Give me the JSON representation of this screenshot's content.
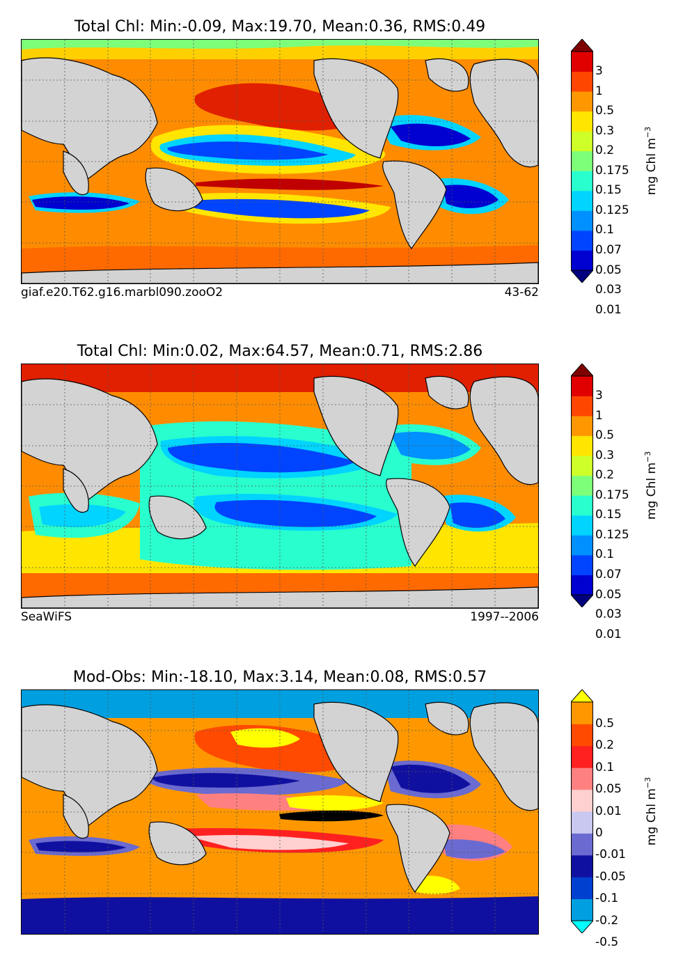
{
  "panels": [
    {
      "title": "Total Chl: Min:-0.09, Max:19.70, Mean:0.36, RMS:0.49",
      "left_caption": "giaf.e20.T62.g16.marbl090.zooO2",
      "right_caption": "43-62",
      "colorbar": {
        "ticks": [
          "3",
          "1",
          "0.5",
          "0.3",
          "0.2",
          "0.175",
          "0.15",
          "0.125",
          "0.1",
          "0.07",
          "0.05",
          "0.03",
          "0.01"
        ],
        "colors": [
          "#00007f",
          "#0000d0",
          "#0044ff",
          "#0090ff",
          "#00d4ff",
          "#29ffce",
          "#7dff7a",
          "#ceff29",
          "#ffe500",
          "#ff9800",
          "#ff4600",
          "#e00000",
          "#7f0000"
        ],
        "unit": "mg Chl m",
        "unit_exp": "−3"
      }
    },
    {
      "title": "Total Chl: Min:0.02, Max:64.57, Mean:0.71, RMS:2.86",
      "left_caption": "SeaWiFS",
      "right_caption": "1997--2006",
      "colorbar": {
        "ticks": [
          "3",
          "1",
          "0.5",
          "0.3",
          "0.2",
          "0.175",
          "0.15",
          "0.125",
          "0.1",
          "0.07",
          "0.05",
          "0.03",
          "0.01"
        ],
        "colors": [
          "#00007f",
          "#0000d0",
          "#0044ff",
          "#0090ff",
          "#00d4ff",
          "#29ffce",
          "#7dff7a",
          "#ceff29",
          "#ffe500",
          "#ff9800",
          "#ff4600",
          "#e00000",
          "#7f0000"
        ],
        "unit": "mg Chl m",
        "unit_exp": "−3"
      }
    },
    {
      "title": "Mod-Obs: Min:-18.10, Max:3.14, Mean:0.08, RMS:0.57",
      "left_caption": "",
      "right_caption": "",
      "colorbar": {
        "ticks": [
          "0.5",
          "0.2",
          "0.1",
          "0.05",
          "0.01",
          "0",
          "-0.01",
          "-0.05",
          "-0.1",
          "-0.2",
          "-0.5"
        ],
        "colors": [
          "#00ffff",
          "#00a0e0",
          "#0040d0",
          "#1010a0",
          "#6a6ad0",
          "#c8c8f0",
          "#ffd0d0",
          "#ff8080",
          "#ff2020",
          "#ff4a00",
          "#ff9800",
          "#ffff00"
        ],
        "unit": "mg Chl m",
        "unit_exp": "−3"
      }
    }
  ],
  "colors": {
    "land": "#d3d3d3",
    "coast": "#000000",
    "grid": "#555555"
  }
}
